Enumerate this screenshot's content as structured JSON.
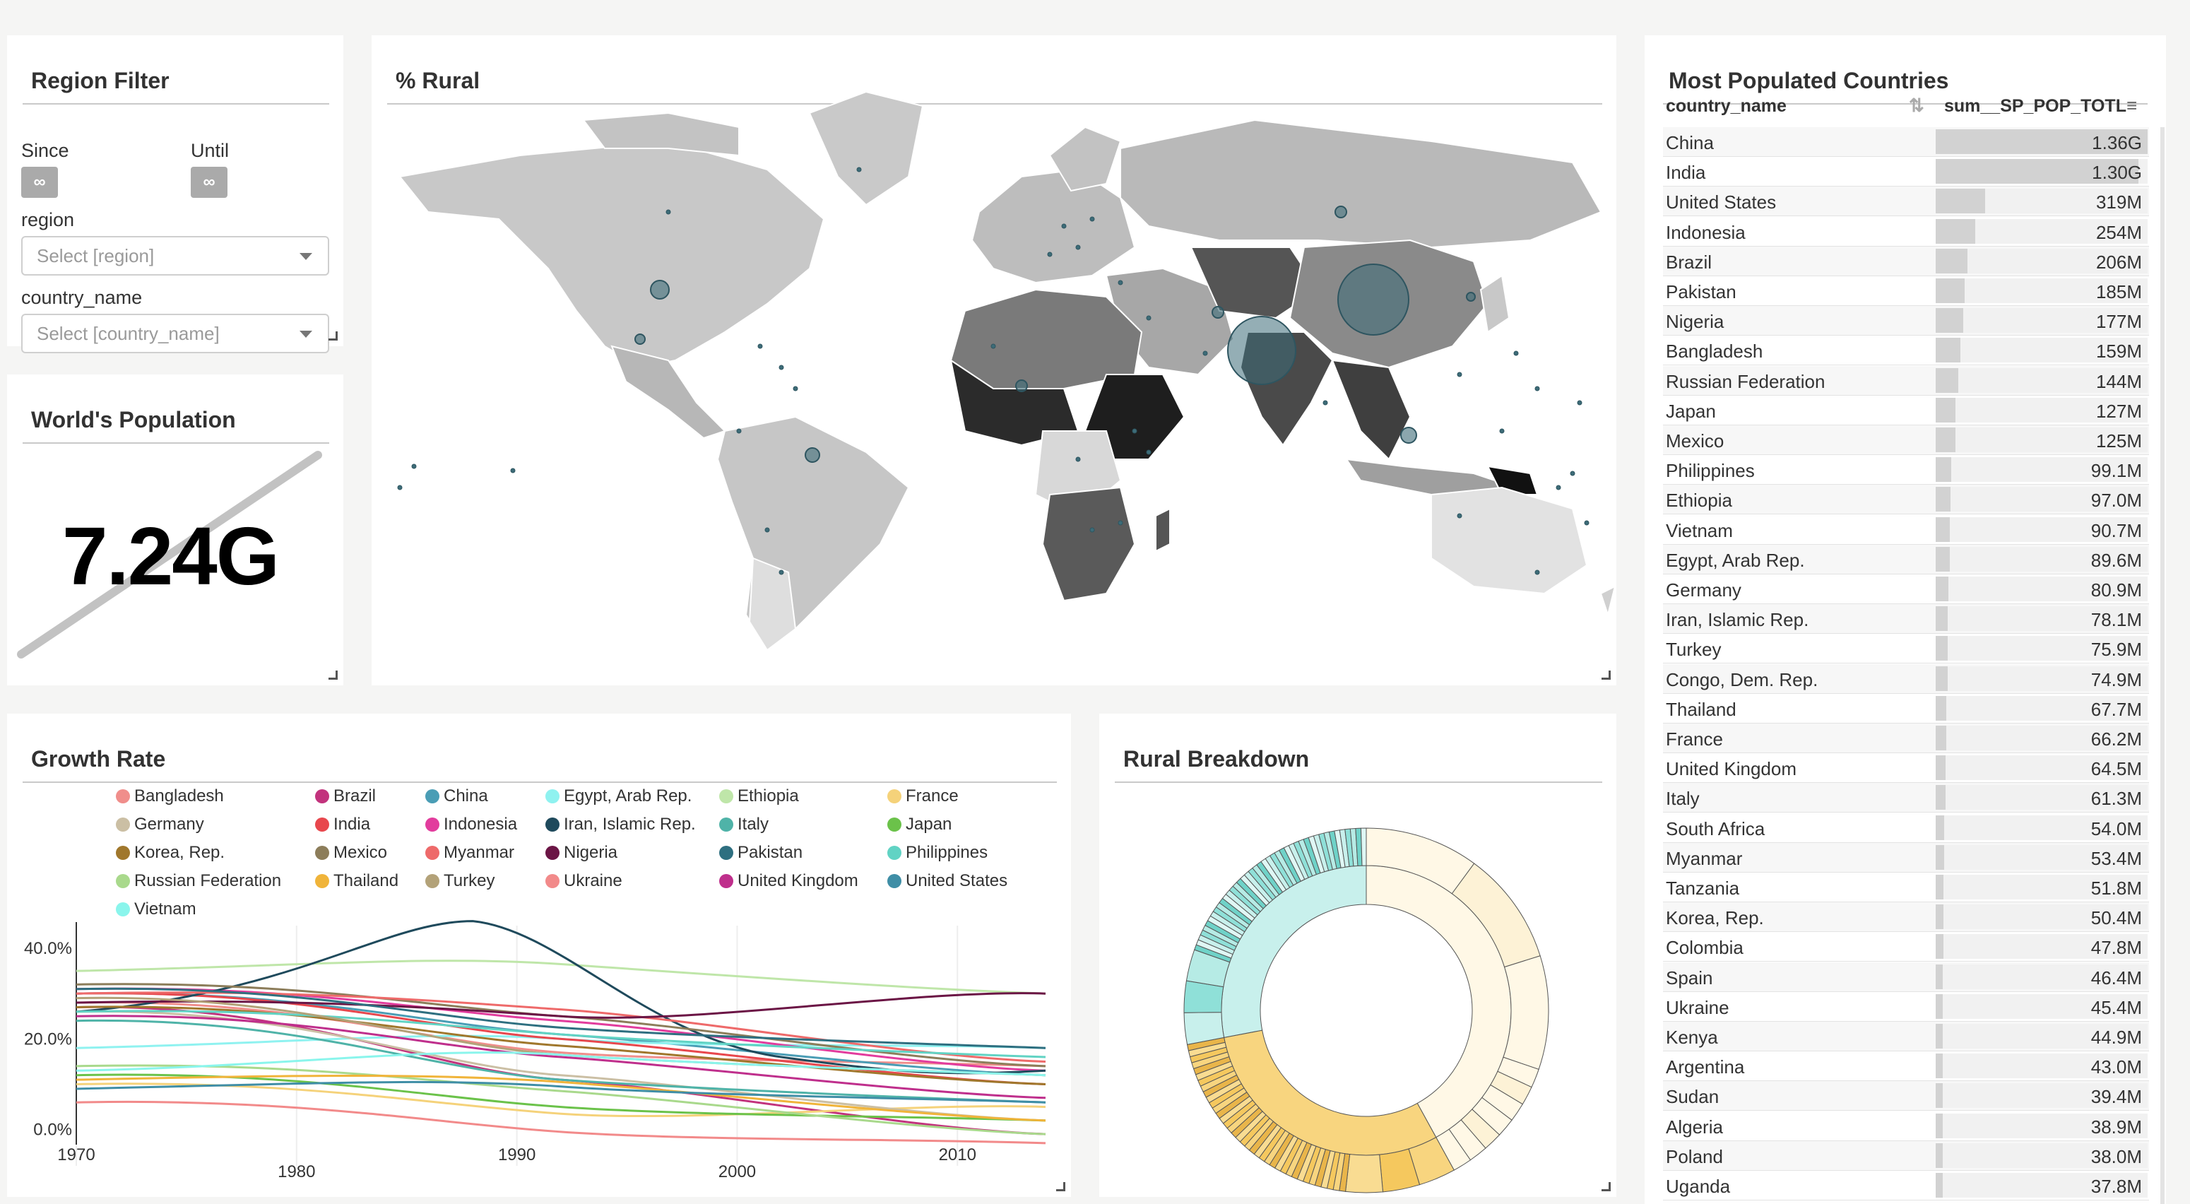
{
  "region_filter": {
    "title": "Region Filter",
    "since_label": "Since",
    "until_label": "Until",
    "since_value": "∞",
    "until_value": "∞",
    "region_label": "region",
    "region_placeholder": "Select [region]",
    "country_label": "country_name",
    "country_placeholder": "Select [country_name]"
  },
  "worlds_population": {
    "title": "World's Population",
    "value": "7.24G"
  },
  "rural_map": {
    "title": "% Rural"
  },
  "growth_rate": {
    "title": "Growth Rate",
    "legend": [
      {
        "name": "Bangladesh",
        "color": "#f08e8b"
      },
      {
        "name": "Brazil",
        "color": "#c2337d"
      },
      {
        "name": "China",
        "color": "#4a9db5"
      },
      {
        "name": "Egypt, Arab Rep.",
        "color": "#8ff2f0"
      },
      {
        "name": "Ethiopia",
        "color": "#bfe6a9"
      },
      {
        "name": "France",
        "color": "#f5d27a"
      },
      {
        "name": "Germany",
        "color": "#cbbfa4"
      },
      {
        "name": "India",
        "color": "#e8474d"
      },
      {
        "name": "Indonesia",
        "color": "#e23c9d"
      },
      {
        "name": "Iran, Islamic Rep.",
        "color": "#1f4a5c"
      },
      {
        "name": "Italy",
        "color": "#4fb3a8"
      },
      {
        "name": "Japan",
        "color": "#6bc24a"
      },
      {
        "name": "Korea, Rep.",
        "color": "#a0772c"
      },
      {
        "name": "Mexico",
        "color": "#8c7d5a"
      },
      {
        "name": "Myanmar",
        "color": "#ee6a6a"
      },
      {
        "name": "Nigeria",
        "color": "#6b1545"
      },
      {
        "name": "Pakistan",
        "color": "#2e6f80"
      },
      {
        "name": "Philippines",
        "color": "#61d3c4"
      },
      {
        "name": "Russian Federation",
        "color": "#a9d98c"
      },
      {
        "name": "Thailand",
        "color": "#f0b43a"
      },
      {
        "name": "Turkey",
        "color": "#b3a279"
      },
      {
        "name": "Ukraine",
        "color": "#f28a8a"
      },
      {
        "name": "United Kingdom",
        "color": "#bf2f8c"
      },
      {
        "name": "United States",
        "color": "#3f8ea6"
      },
      {
        "name": "Vietnam",
        "color": "#8af5ec"
      }
    ],
    "chart_data": {
      "type": "line",
      "x_ticks": [
        "1970",
        "1980",
        "1990",
        "2000",
        "2010"
      ],
      "y_ticks": [
        "40.0%",
        "20.0%",
        "0.0%"
      ],
      "xlim": [
        1970,
        2014
      ],
      "ylim": [
        -8,
        45
      ]
    }
  },
  "rural_breakdown": {
    "title": "Rural Breakdown",
    "chart_data": {
      "type": "sunburst",
      "inner_ring": [
        {
          "value": 0.42,
          "color": "#fff8e6"
        },
        {
          "value": 0.3,
          "color": "#f8d57f"
        },
        {
          "value": 0.28,
          "color": "#c8f0ec"
        }
      ]
    }
  },
  "populated": {
    "title": "Most Populated Countries",
    "col_country": "country_name",
    "col_value": "sum__SP_POP_TOTL",
    "rows": [
      {
        "name": "China",
        "display": "1.36G",
        "value": 1.36
      },
      {
        "name": "India",
        "display": "1.30G",
        "value": 1.3
      },
      {
        "name": "United States",
        "display": "319M",
        "value": 0.319
      },
      {
        "name": "Indonesia",
        "display": "254M",
        "value": 0.254
      },
      {
        "name": "Brazil",
        "display": "206M",
        "value": 0.206
      },
      {
        "name": "Pakistan",
        "display": "185M",
        "value": 0.185
      },
      {
        "name": "Nigeria",
        "display": "177M",
        "value": 0.177
      },
      {
        "name": "Bangladesh",
        "display": "159M",
        "value": 0.159
      },
      {
        "name": "Russian Federation",
        "display": "144M",
        "value": 0.144
      },
      {
        "name": "Japan",
        "display": "127M",
        "value": 0.127
      },
      {
        "name": "Mexico",
        "display": "125M",
        "value": 0.125
      },
      {
        "name": "Philippines",
        "display": "99.1M",
        "value": 0.0991
      },
      {
        "name": "Ethiopia",
        "display": "97.0M",
        "value": 0.097
      },
      {
        "name": "Vietnam",
        "display": "90.7M",
        "value": 0.0907
      },
      {
        "name": "Egypt, Arab Rep.",
        "display": "89.6M",
        "value": 0.0896
      },
      {
        "name": "Germany",
        "display": "80.9M",
        "value": 0.0809
      },
      {
        "name": "Iran, Islamic Rep.",
        "display": "78.1M",
        "value": 0.0781
      },
      {
        "name": "Turkey",
        "display": "75.9M",
        "value": 0.0759
      },
      {
        "name": "Congo, Dem. Rep.",
        "display": "74.9M",
        "value": 0.0749
      },
      {
        "name": "Thailand",
        "display": "67.7M",
        "value": 0.0677
      },
      {
        "name": "France",
        "display": "66.2M",
        "value": 0.0662
      },
      {
        "name": "United Kingdom",
        "display": "64.5M",
        "value": 0.0645
      },
      {
        "name": "Italy",
        "display": "61.3M",
        "value": 0.0613
      },
      {
        "name": "South Africa",
        "display": "54.0M",
        "value": 0.054
      },
      {
        "name": "Myanmar",
        "display": "53.4M",
        "value": 0.0534
      },
      {
        "name": "Tanzania",
        "display": "51.8M",
        "value": 0.0518
      },
      {
        "name": "Korea, Rep.",
        "display": "50.4M",
        "value": 0.0504
      },
      {
        "name": "Colombia",
        "display": "47.8M",
        "value": 0.0478
      },
      {
        "name": "Spain",
        "display": "46.4M",
        "value": 0.0464
      },
      {
        "name": "Ukraine",
        "display": "45.4M",
        "value": 0.0454
      },
      {
        "name": "Kenya",
        "display": "44.9M",
        "value": 0.0449
      },
      {
        "name": "Argentina",
        "display": "43.0M",
        "value": 0.043
      },
      {
        "name": "Sudan",
        "display": "39.4M",
        "value": 0.0394
      },
      {
        "name": "Algeria",
        "display": "38.9M",
        "value": 0.0389
      },
      {
        "name": "Poland",
        "display": "38.0M",
        "value": 0.038
      },
      {
        "name": "Uganda",
        "display": "37.8M",
        "value": 0.0378
      }
    ]
  }
}
